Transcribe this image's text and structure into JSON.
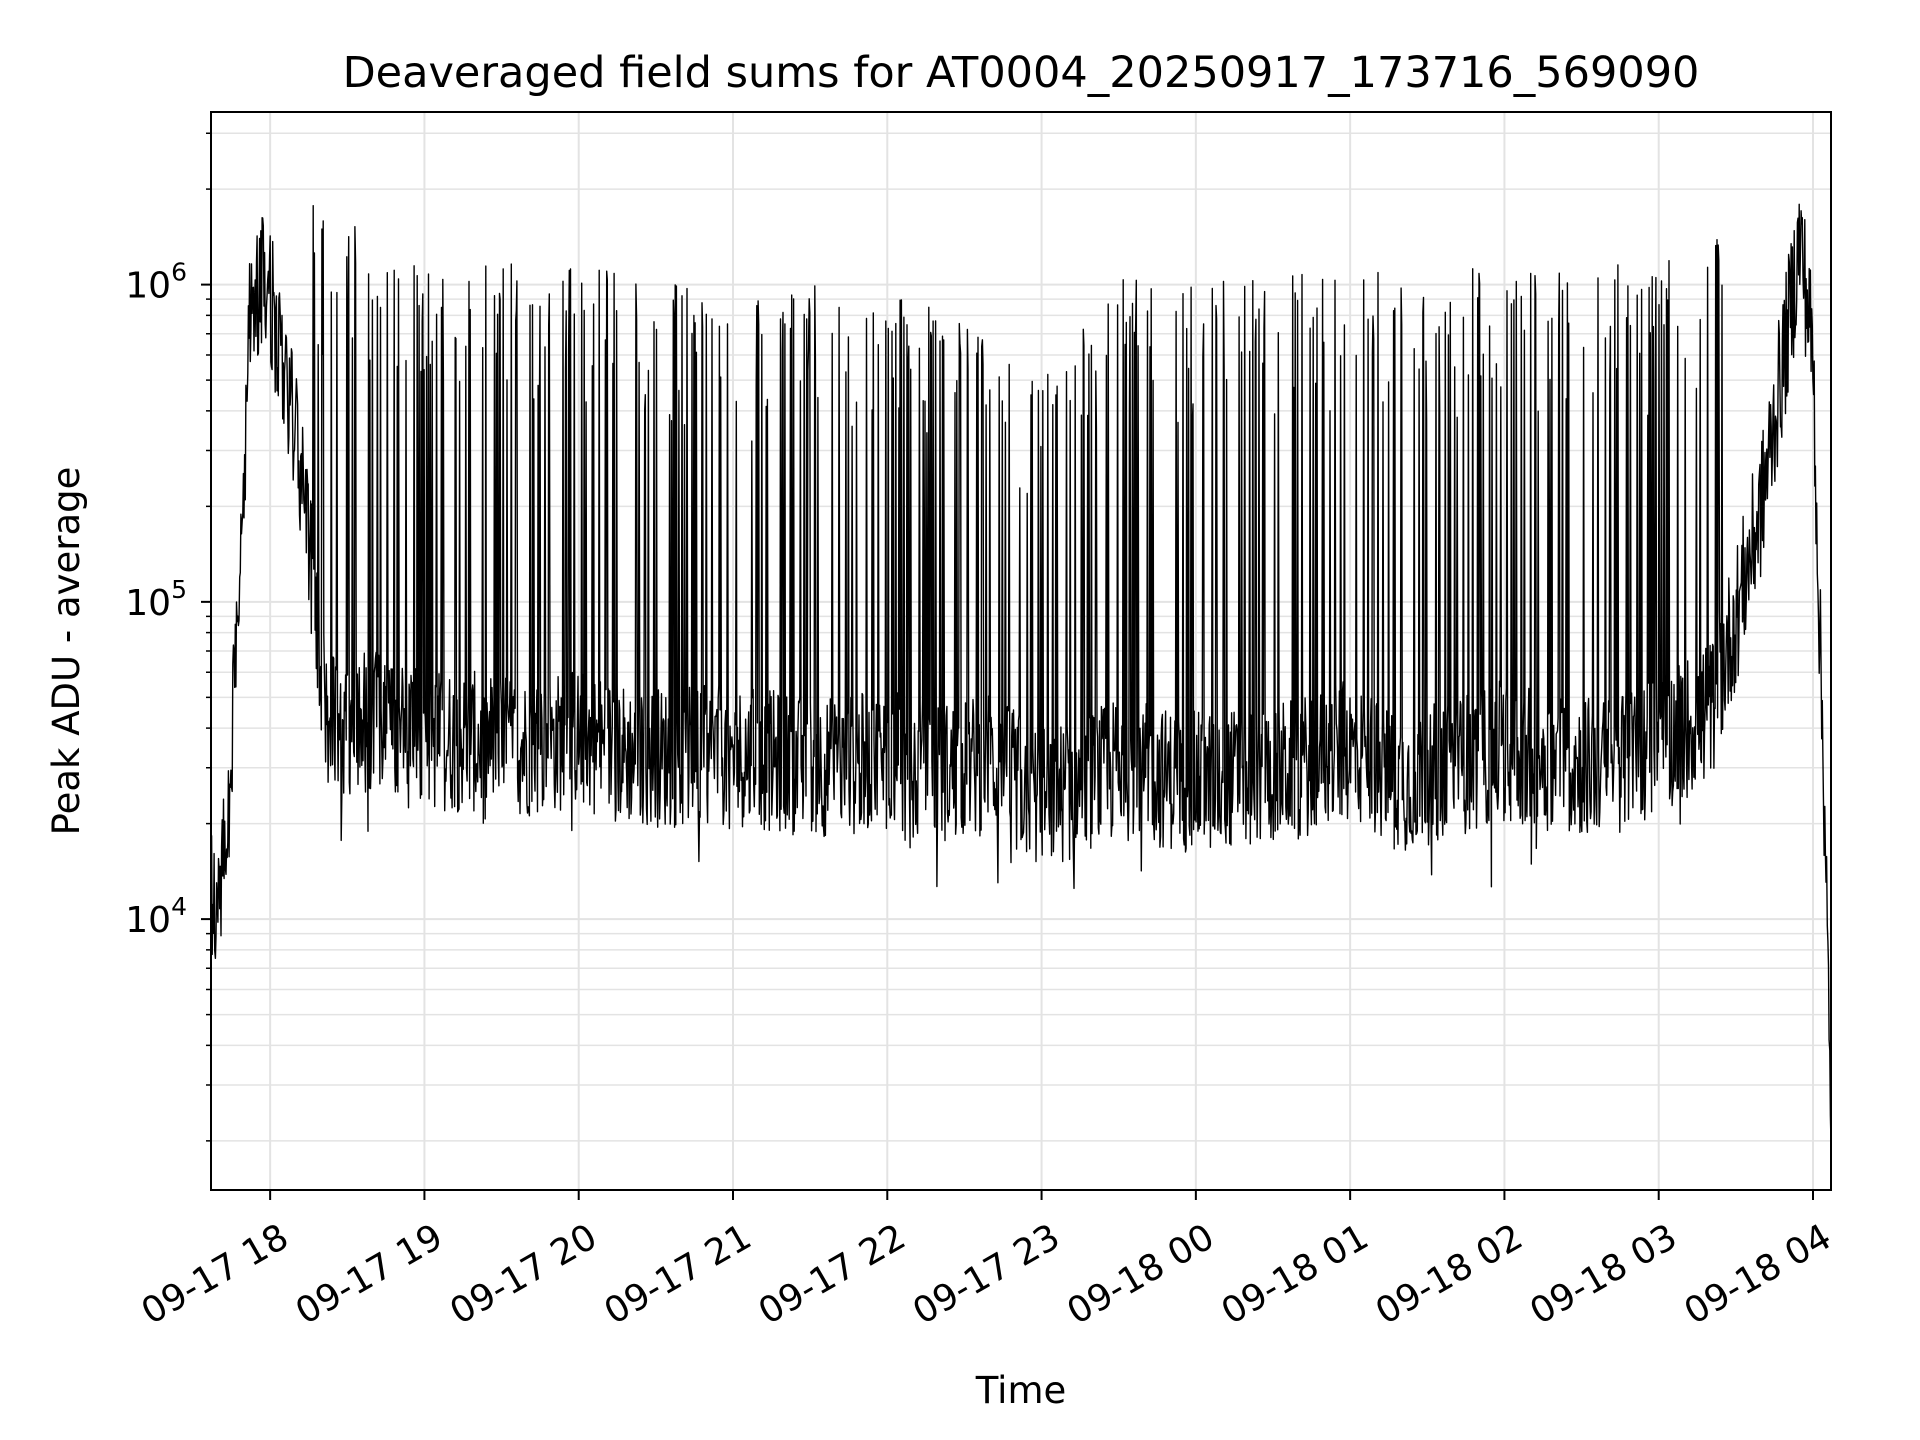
{
  "chart_data": {
    "type": "line",
    "title": "Deaveraged field sums for AT0004_20250917_173716_569090",
    "xlabel": "Time",
    "ylabel": "Peak ADU - average",
    "x_axis": {
      "type": "time",
      "range": [
        "2025-09-17 17:37",
        "2025-09-18 04:07"
      ],
      "ticks": [
        {
          "value": "2025-09-17 18:00",
          "label": "09-17 18"
        },
        {
          "value": "2025-09-17 19:00",
          "label": "09-17 19"
        },
        {
          "value": "2025-09-17 20:00",
          "label": "09-17 20"
        },
        {
          "value": "2025-09-17 21:00",
          "label": "09-17 21"
        },
        {
          "value": "2025-09-17 22:00",
          "label": "09-17 22"
        },
        {
          "value": "2025-09-17 23:00",
          "label": "09-17 23"
        },
        {
          "value": "2025-09-18 00:00",
          "label": "09-18 00"
        },
        {
          "value": "2025-09-18 01:00",
          "label": "09-18 01"
        },
        {
          "value": "2025-09-18 02:00",
          "label": "09-18 02"
        },
        {
          "value": "2025-09-18 03:00",
          "label": "09-18 03"
        },
        {
          "value": "2025-09-18 04:00",
          "label": "09-18 04"
        }
      ],
      "tick_rotation_deg": 30
    },
    "y_axis": {
      "scale": "log",
      "range": [
        1400,
        3500000
      ],
      "ticks": [
        {
          "value": 10000,
          "base": "10",
          "exponent": "4"
        },
        {
          "value": 100000,
          "base": "10",
          "exponent": "5"
        },
        {
          "value": 1000000,
          "base": "10",
          "exponent": "6"
        }
      ]
    },
    "grid": true,
    "line_color": "#000000",
    "grid_color": "#e3e3e3",
    "series": [
      {
        "x": [
          "2025-09-17 17:37",
          "2025-09-17 17:40",
          "2025-09-17 17:44",
          "2025-09-17 17:48",
          "2025-09-17 17:52",
          "2025-09-17 17:56",
          "2025-09-17 18:00",
          "2025-09-17 18:04",
          "2025-09-17 18:08",
          "2025-09-17 18:12",
          "2025-09-17 18:16",
          "2025-09-17 18:20",
          "2025-09-17 18:24",
          "2025-09-17 18:30",
          "2025-09-17 18:40",
          "2025-09-17 18:50",
          "2025-09-17 19:00",
          "2025-09-17 19:20",
          "2025-09-17 19:40",
          "2025-09-17 20:00",
          "2025-09-17 20:20",
          "2025-09-17 20:40",
          "2025-09-17 21:00",
          "2025-09-17 21:20",
          "2025-09-17 21:40",
          "2025-09-17 22:00",
          "2025-09-17 22:20",
          "2025-09-17 22:40",
          "2025-09-17 23:00",
          "2025-09-17 23:15",
          "2025-09-17 23:30",
          "2025-09-17 23:45",
          "2025-09-18 00:00",
          "2025-09-18 00:20",
          "2025-09-18 00:40",
          "2025-09-18 01:00",
          "2025-09-18 01:20",
          "2025-09-18 01:40",
          "2025-09-18 02:00",
          "2025-09-18 02:20",
          "2025-09-18 02:40",
          "2025-09-18 03:00",
          "2025-09-18 03:10",
          "2025-09-18 03:20",
          "2025-09-18 03:30",
          "2025-09-18 03:40",
          "2025-09-18 03:50",
          "2025-09-18 03:55",
          "2025-09-18 04:00",
          "2025-09-18 04:03",
          "2025-09-18 04:05",
          "2025-09-18 04:07"
        ],
        "y": [
          12000,
          11000,
          25000,
          120000,
          700000,
          1000000,
          900000,
          650000,
          400000,
          250000,
          130000,
          50000,
          42000,
          40000,
          42000,
          38000,
          37000,
          36000,
          35000,
          37000,
          33000,
          32000,
          33000,
          31000,
          30000,
          32000,
          29000,
          31000,
          24000,
          26000,
          30000,
          28000,
          27000,
          28000,
          30000,
          34000,
          27000,
          30000,
          34000,
          31000,
          30000,
          36000,
          40000,
          45000,
          90000,
          200000,
          700000,
          1400000,
          600000,
          60000,
          17000,
          1600
        ],
        "spikes": {
          "count": 420,
          "range": [
            "2025-09-17 18:15",
            "2025-09-18 03:30"
          ],
          "peak_envelope": [
            [
              "2025-09-17 18:20",
              1700000
            ],
            [
              "2025-09-17 19:00",
              1100000
            ],
            [
              "2025-09-17 20:00",
              1150000
            ],
            [
              "2025-09-17 21:00",
              900000
            ],
            [
              "2025-09-17 22:00",
              1000000
            ],
            [
              "2025-09-17 23:00",
              500000
            ],
            [
              "2025-09-17 23:30",
              1000000
            ],
            [
              "2025-09-18 00:00",
              1000000
            ],
            [
              "2025-09-18 01:00",
              1050000
            ],
            [
              "2025-09-18 02:00",
              1100000
            ],
            [
              "2025-09-18 03:00",
              1100000
            ],
            [
              "2025-09-18 03:30",
              1400000
            ]
          ],
          "dip_floor": 15000
        }
      }
    ]
  }
}
